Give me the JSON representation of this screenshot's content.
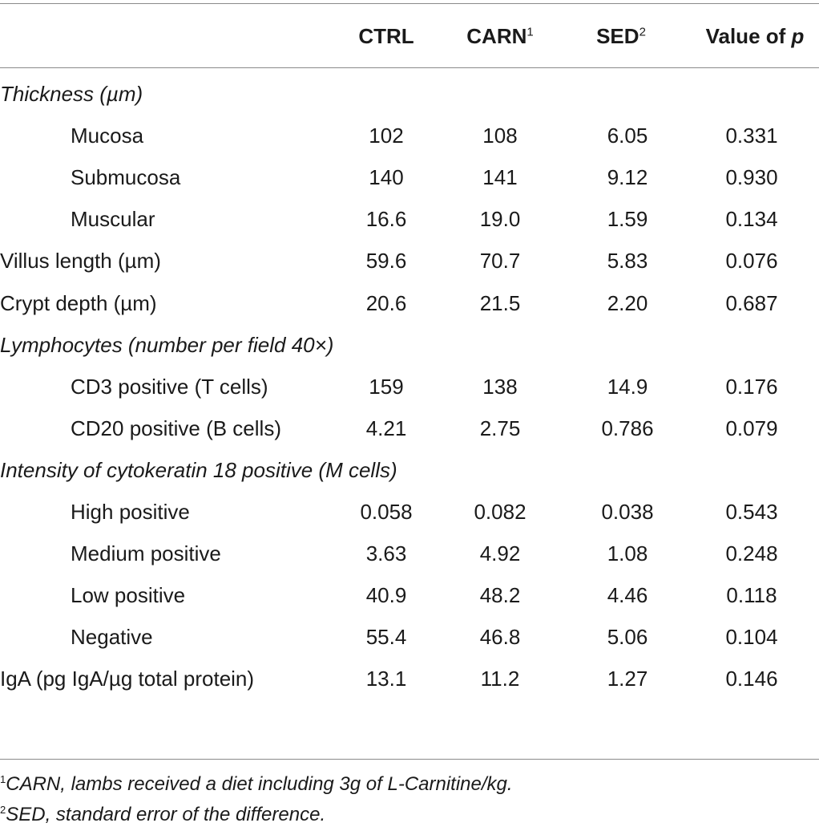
{
  "header": {
    "col_ctrl": "CTRL",
    "col_carn": "CARN",
    "col_carn_sup": "1",
    "col_sed": "SED",
    "col_sed_sup": "2",
    "col_p_prefix": "Value of ",
    "col_p_var": "p"
  },
  "rows": [
    {
      "label": "Thickness (µm)",
      "kind": "section"
    },
    {
      "label": "Mucosa",
      "kind": "sub",
      "ctrl": "102",
      "carn": "108",
      "sed": "6.05",
      "p": "0.331"
    },
    {
      "label": "Submucosa",
      "kind": "sub",
      "ctrl": "140",
      "carn": "141",
      "sed": "9.12",
      "p": "0.930"
    },
    {
      "label": "Muscular",
      "kind": "sub",
      "ctrl": "16.6",
      "carn": "19.0",
      "sed": "1.59",
      "p": "0.134"
    },
    {
      "label": "Villus length (µm)",
      "kind": "main",
      "ctrl": "59.6",
      "carn": "70.7",
      "sed": "5.83",
      "p": "0.076"
    },
    {
      "label": "Crypt depth (µm)",
      "kind": "main",
      "ctrl": "20.6",
      "carn": "21.5",
      "sed": "2.20",
      "p": "0.687"
    },
    {
      "label": "Lymphocytes (number per field 40×)",
      "kind": "section"
    },
    {
      "label": "CD3 positive (T cells)",
      "kind": "sub",
      "ctrl": "159",
      "carn": "138",
      "sed": "14.9",
      "p": "0.176"
    },
    {
      "label": "CD20 positive (B cells)",
      "kind": "sub",
      "ctrl": "4.21",
      "carn": "2.75",
      "sed": "0.786",
      "p": "0.079"
    },
    {
      "label": "Intensity of cytokeratin 18 positive (M cells)",
      "kind": "section"
    },
    {
      "label": "High positive",
      "kind": "sub",
      "ctrl": "0.058",
      "carn": "0.082",
      "sed": "0.038",
      "p": "0.543"
    },
    {
      "label": "Medium positive",
      "kind": "sub",
      "ctrl": "3.63",
      "carn": "4.92",
      "sed": "1.08",
      "p": "0.248"
    },
    {
      "label": "Low positive",
      "kind": "sub",
      "ctrl": "40.9",
      "carn": "48.2",
      "sed": "4.46",
      "p": "0.118"
    },
    {
      "label": "Negative",
      "kind": "sub",
      "ctrl": "55.4",
      "carn": "46.8",
      "sed": "5.06",
      "p": "0.104"
    },
    {
      "label": "IgA (pg IgA/µg total protein)",
      "kind": "main",
      "ctrl": "13.1",
      "carn": "11.2",
      "sed": "1.27",
      "p": "0.146"
    }
  ],
  "footnotes": {
    "note1_mark": "1",
    "note1_text": "CARN, lambs received a diet including 3g of L-Carnitine/kg.",
    "note2_mark": "2",
    "note2_text": "SED, standard error of the difference."
  }
}
